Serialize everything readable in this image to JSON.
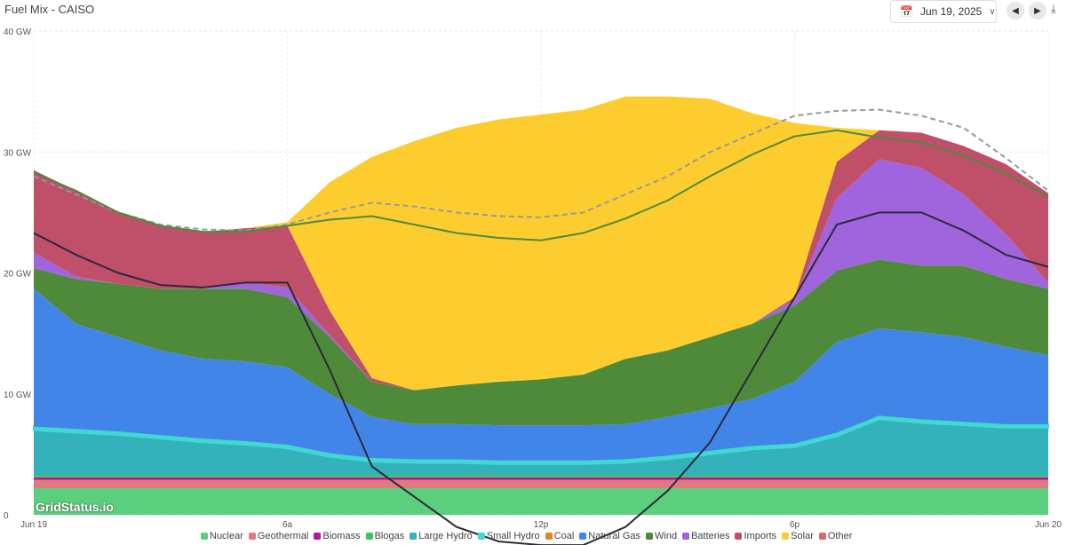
{
  "header": {
    "title": "Fuel Mix - CAISO",
    "date": "Jun 19, 2025",
    "icons": [
      "calendar-icon",
      "chevron-down-icon",
      "prev-day-icon",
      "next-day-icon",
      "download-icon"
    ]
  },
  "watermark": "GridStatus.io",
  "chart_data": {
    "type": "area",
    "title": "Fuel Mix - CAISO",
    "x_hours": [
      0,
      1,
      2,
      3,
      4,
      5,
      6,
      7,
      8,
      9,
      10,
      11,
      12,
      13,
      14,
      15,
      16,
      17,
      18,
      19,
      20,
      21,
      22,
      23,
      24
    ],
    "xticks": [
      {
        "h": 0,
        "label": "Jun 19"
      },
      {
        "h": 6,
        "label": "6a"
      },
      {
        "h": 12,
        "label": "12p"
      },
      {
        "h": 18,
        "label": "6p"
      },
      {
        "h": 24,
        "label": "Jun 20"
      }
    ],
    "yticks": [
      {
        "v": 0,
        "label": "0"
      },
      {
        "v": 10,
        "label": "10 GW"
      },
      {
        "v": 20,
        "label": "20 GW"
      },
      {
        "v": 30,
        "label": "30 GW"
      },
      {
        "v": 40,
        "label": "40 GW"
      }
    ],
    "ylim": [
      -2.5,
      40
    ],
    "unit": "GW",
    "series": [
      {
        "name": "Nuclear",
        "color": "#5ccf7e",
        "values": [
          2.2,
          2.2,
          2.2,
          2.2,
          2.2,
          2.2,
          2.2,
          2.2,
          2.2,
          2.2,
          2.2,
          2.2,
          2.2,
          2.2,
          2.2,
          2.2,
          2.2,
          2.2,
          2.2,
          2.2,
          2.2,
          2.2,
          2.2,
          2.2,
          2.2
        ]
      },
      {
        "name": "Geothermal",
        "color": "#e07a80",
        "values": [
          0.7,
          0.7,
          0.7,
          0.7,
          0.7,
          0.7,
          0.7,
          0.7,
          0.7,
          0.7,
          0.7,
          0.7,
          0.7,
          0.7,
          0.7,
          0.7,
          0.7,
          0.7,
          0.7,
          0.7,
          0.7,
          0.7,
          0.7,
          0.7,
          0.7
        ]
      },
      {
        "name": "Biomass",
        "color": "#b3169c",
        "values": [
          0.2,
          0.2,
          0.2,
          0.2,
          0.2,
          0.2,
          0.2,
          0.2,
          0.2,
          0.2,
          0.2,
          0.2,
          0.2,
          0.2,
          0.2,
          0.2,
          0.2,
          0.2,
          0.2,
          0.2,
          0.2,
          0.2,
          0.2,
          0.2,
          0.2
        ]
      },
      {
        "name": "Blogas",
        "color": "#3cc46a",
        "values": [
          0.2,
          0.2,
          0.2,
          0.2,
          0.2,
          0.2,
          0.2,
          0.2,
          0.2,
          0.2,
          0.2,
          0.2,
          0.2,
          0.2,
          0.2,
          0.2,
          0.2,
          0.2,
          0.2,
          0.2,
          0.2,
          0.2,
          0.2,
          0.2,
          0.2
        ]
      },
      {
        "name": "Large Hydro",
        "color": "#33b2bc",
        "values": [
          3.7,
          3.5,
          3.3,
          3.0,
          2.7,
          2.5,
          2.2,
          1.5,
          1.1,
          1.0,
          1.0,
          0.9,
          0.9,
          0.9,
          1.0,
          1.3,
          1.7,
          2.1,
          2.3,
          3.2,
          4.6,
          4.3,
          4.1,
          3.9,
          3.9
        ]
      },
      {
        "name": "Small Hydro",
        "color": "#40d8d0",
        "values": [
          0.3,
          0.3,
          0.3,
          0.3,
          0.3,
          0.3,
          0.3,
          0.3,
          0.3,
          0.3,
          0.3,
          0.3,
          0.3,
          0.3,
          0.3,
          0.3,
          0.3,
          0.3,
          0.3,
          0.3,
          0.3,
          0.3,
          0.3,
          0.3,
          0.3
        ]
      },
      {
        "name": "Coal",
        "color": "#e0852a",
        "values": [
          0,
          0,
          0,
          0,
          0,
          0,
          0,
          0,
          0,
          0,
          0,
          0,
          0,
          0,
          0,
          0,
          0,
          0,
          0,
          0,
          0,
          0,
          0,
          0,
          0
        ]
      },
      {
        "name": "Natural Gas",
        "color": "#4285e8",
        "values": [
          11.4,
          8.7,
          7.8,
          7.0,
          6.6,
          6.6,
          6.4,
          4.9,
          3.4,
          2.9,
          2.9,
          2.9,
          2.9,
          2.9,
          2.9,
          3.2,
          3.5,
          3.9,
          5.1,
          7.5,
          7.2,
          7.2,
          7.0,
          6.4,
          5.7
        ]
      },
      {
        "name": "Wind",
        "color": "#4f8a3a",
        "values": [
          1.7,
          3.7,
          4.4,
          5.1,
          5.8,
          6.0,
          5.8,
          4.7,
          2.9,
          2.8,
          3.2,
          3.6,
          3.8,
          4.2,
          5.4,
          5.5,
          5.9,
          6.2,
          6.3,
          5.9,
          5.7,
          5.5,
          5.9,
          5.6,
          5.5
        ]
      },
      {
        "name": "Batteries",
        "color": "#a064dc",
        "values": [
          1.3,
          0.2,
          0,
          0,
          0,
          0.5,
          0.8,
          0.2,
          0,
          0,
          0,
          0,
          0,
          0,
          0,
          0,
          0,
          0,
          0.5,
          6.0,
          8.3,
          8.1,
          5.9,
          3.7,
          0.5
        ]
      },
      {
        "name": "Imports",
        "color": "#c0506a",
        "values": [
          6.8,
          7.1,
          5.9,
          5.2,
          4.7,
          4.5,
          5.1,
          2.0,
          0.3,
          0,
          0,
          0,
          0,
          0,
          0,
          0,
          0,
          0,
          0.2,
          3.0,
          2.4,
          2.9,
          4.0,
          5.8,
          7.4
        ]
      },
      {
        "name": "Solar",
        "color": "#fdcd30",
        "values": [
          0,
          0,
          0,
          0,
          0,
          0,
          0.3,
          10.6,
          18.3,
          20.6,
          21.3,
          21.7,
          21.9,
          21.9,
          21.7,
          21.0,
          19.7,
          17.4,
          14.4,
          2.8,
          0,
          0,
          0,
          0,
          0
        ]
      },
      {
        "name": "Other",
        "color": "#d86a6a",
        "values": [
          0,
          0,
          0,
          0,
          0,
          0,
          0,
          0,
          0,
          0,
          0,
          0,
          0,
          0,
          0,
          0,
          0,
          0,
          0,
          0,
          0,
          0,
          0,
          0,
          0
        ]
      }
    ],
    "lines": [
      {
        "name": "Load Forecast",
        "color": "#999999",
        "dashed": true,
        "values": [
          28,
          26.5,
          25,
          24,
          23.6,
          23.5,
          24,
          25,
          25.8,
          25.5,
          25,
          24.7,
          24.6,
          25,
          26.5,
          28,
          30,
          31.5,
          33,
          33.4,
          33.5,
          33,
          32,
          29.5,
          26.8
        ]
      },
      {
        "name": "Load",
        "color": "#4f8a3a",
        "dashed": false,
        "values": [
          28.3,
          26.8,
          25,
          23.9,
          23.4,
          23.4,
          23.9,
          24.4,
          24.7,
          24,
          23.3,
          22.9,
          22.7,
          23.3,
          24.5,
          26,
          28,
          29.8,
          31.3,
          31.8,
          31.2,
          30.8,
          29.7,
          28.2,
          26.3
        ]
      },
      {
        "name": "Net Load",
        "color": "#2a2a3a",
        "dashed": false,
        "values": [
          23.3,
          21.5,
          20,
          19,
          18.8,
          19.2,
          19.2,
          12,
          4,
          1.5,
          -1,
          -2.2,
          -2.5,
          -2.5,
          -1,
          2,
          6,
          12,
          18,
          24,
          25,
          25,
          23.5,
          21.5,
          20.5
        ]
      }
    ]
  }
}
